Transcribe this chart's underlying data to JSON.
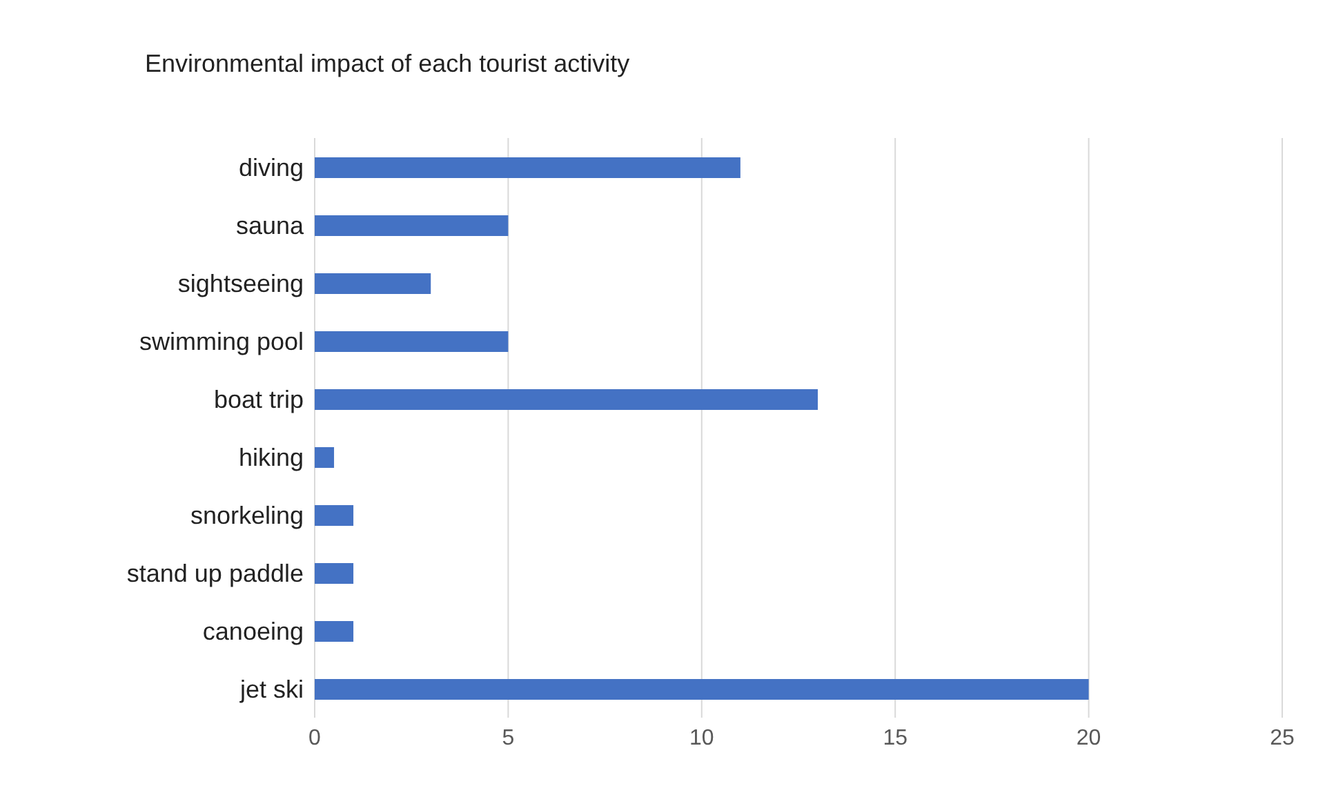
{
  "chart_data": {
    "type": "bar",
    "orientation": "horizontal",
    "title": "Environmental impact of each tourist activity",
    "categories": [
      "diving",
      "sauna",
      "sightseeing",
      "swimming pool",
      "boat trip",
      "hiking",
      "snorkeling",
      "stand up paddle",
      "canoeing",
      "jet ski"
    ],
    "values": [
      11,
      5,
      3,
      5,
      13,
      0.5,
      1,
      1,
      1,
      20
    ],
    "color": "#4472c4",
    "xlim": [
      0,
      25
    ],
    "xticks": [
      0,
      5,
      10,
      15,
      20,
      25
    ],
    "grid": "x"
  }
}
